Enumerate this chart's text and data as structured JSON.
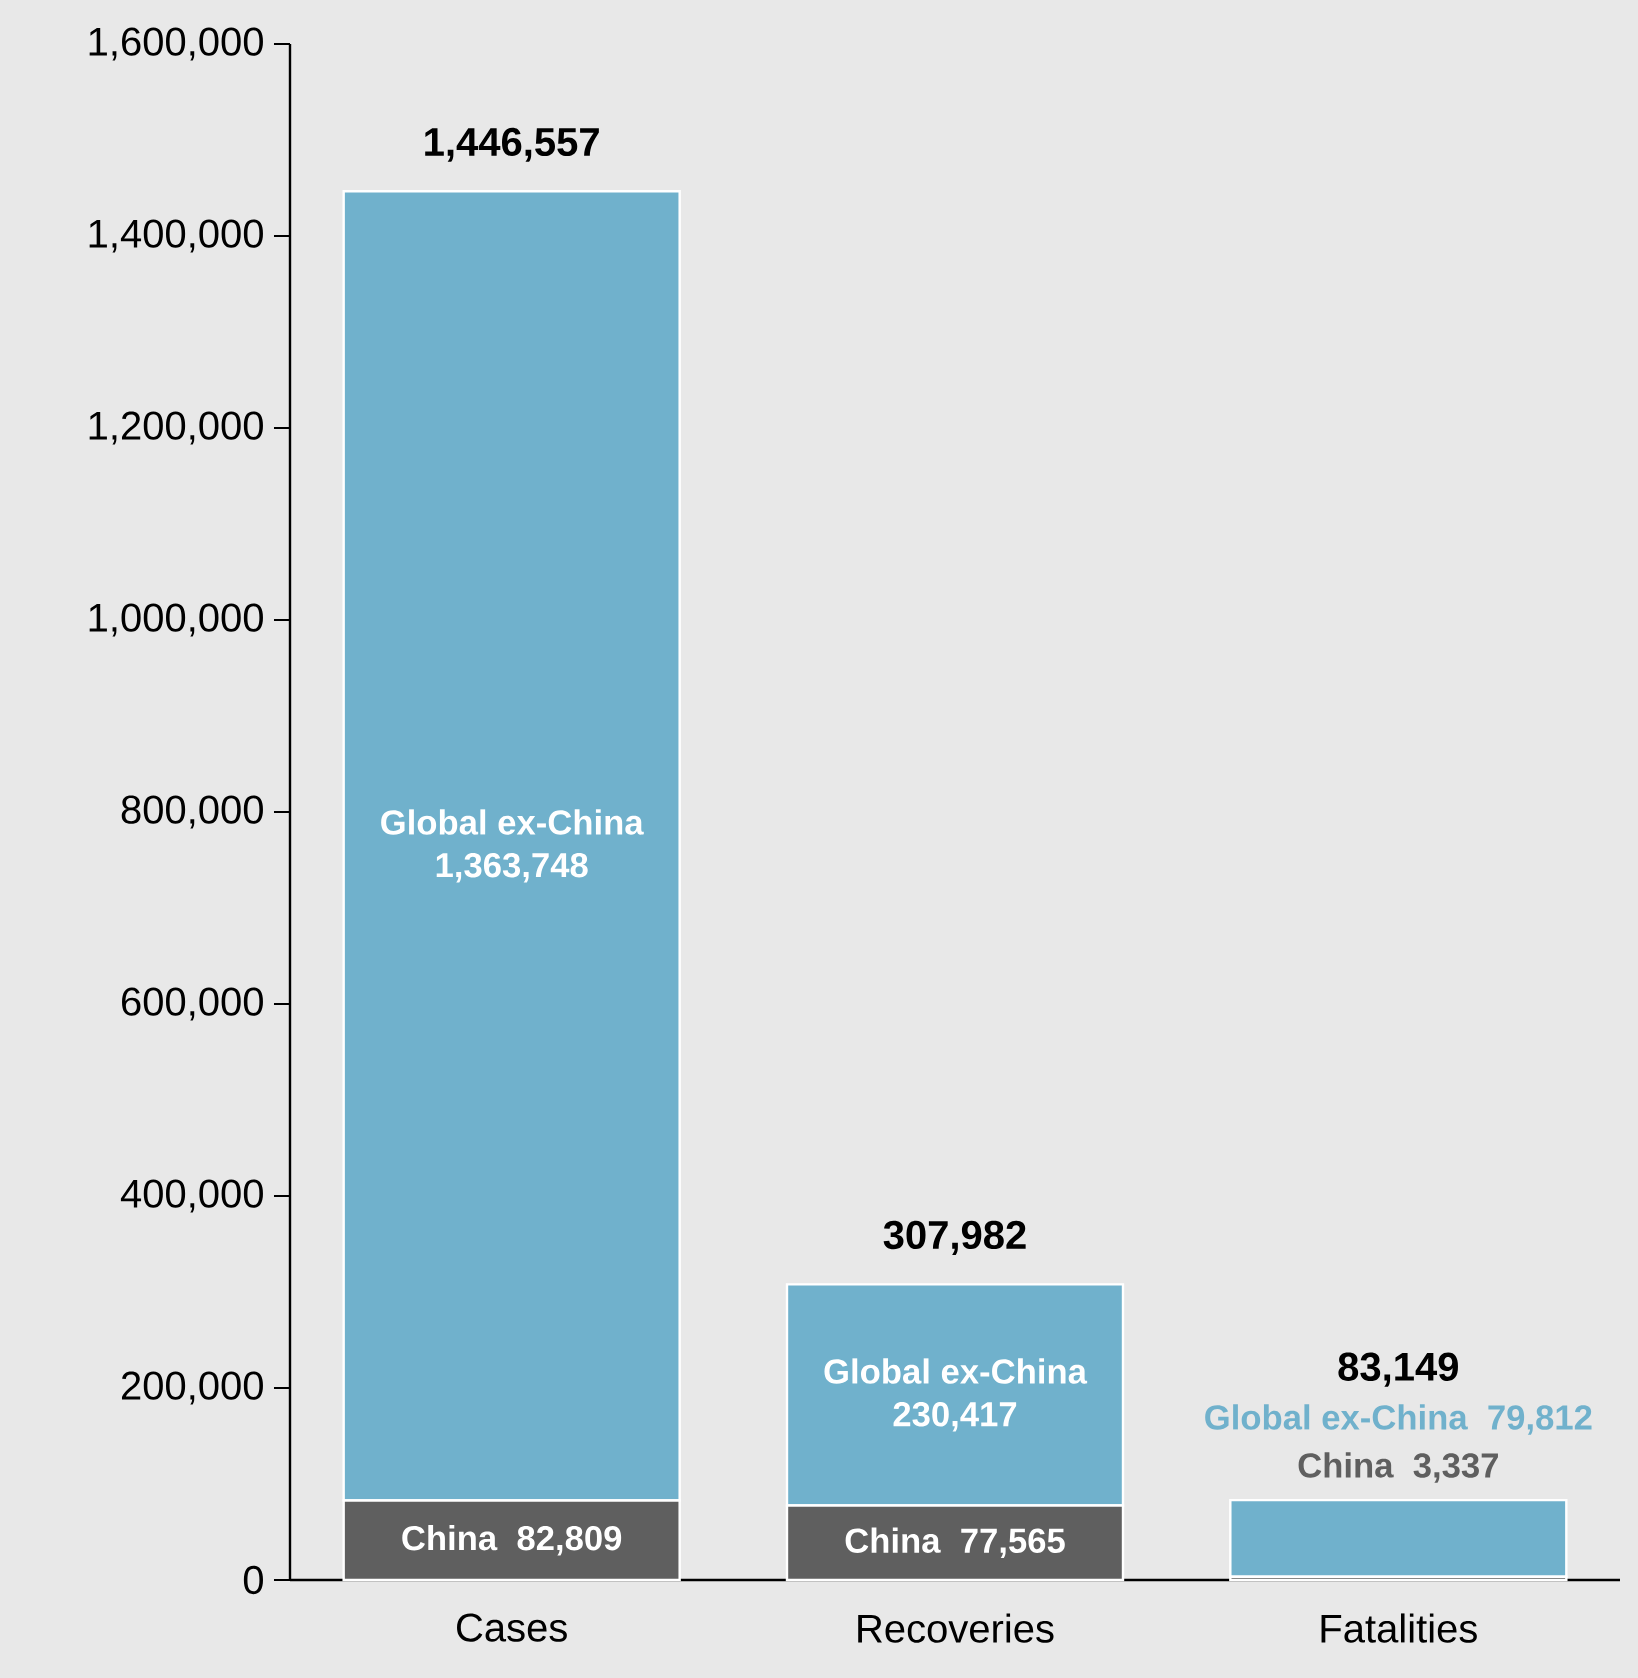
{
  "chart_data": {
    "type": "bar",
    "stacked": true,
    "categories": [
      "Cases",
      "Recoveries",
      "Fatalities"
    ],
    "series": [
      {
        "name": "China",
        "color": "#5f5f5f",
        "values": [
          82809,
          77565,
          3337
        ],
        "value_labels": [
          "82,809",
          "77,565",
          "3,337"
        ]
      },
      {
        "name": "Global ex-China",
        "color": "#70b1cc",
        "values": [
          1363748,
          230417,
          79812
        ],
        "value_labels": [
          "1,363,748",
          "230,417",
          "79,812"
        ]
      }
    ],
    "totals": [
      "1,446,557",
      "307,982",
      "83,149"
    ],
    "ylim": [
      0,
      1600000
    ],
    "yticks": [
      0,
      {
        "value": 200000,
        "label": "200,000"
      },
      {
        "value": 400000,
        "label": "400,000"
      },
      {
        "value": 600000,
        "label": "600,000"
      },
      {
        "value": 800000,
        "label": "800,000"
      },
      {
        "value": 1000000,
        "label": "1,000,000"
      },
      {
        "value": 1200000,
        "label": "1,200,000"
      },
      {
        "value": 1400000,
        "label": "1,400,000"
      },
      {
        "value": 1600000,
        "label": "1,600,000"
      }
    ]
  }
}
